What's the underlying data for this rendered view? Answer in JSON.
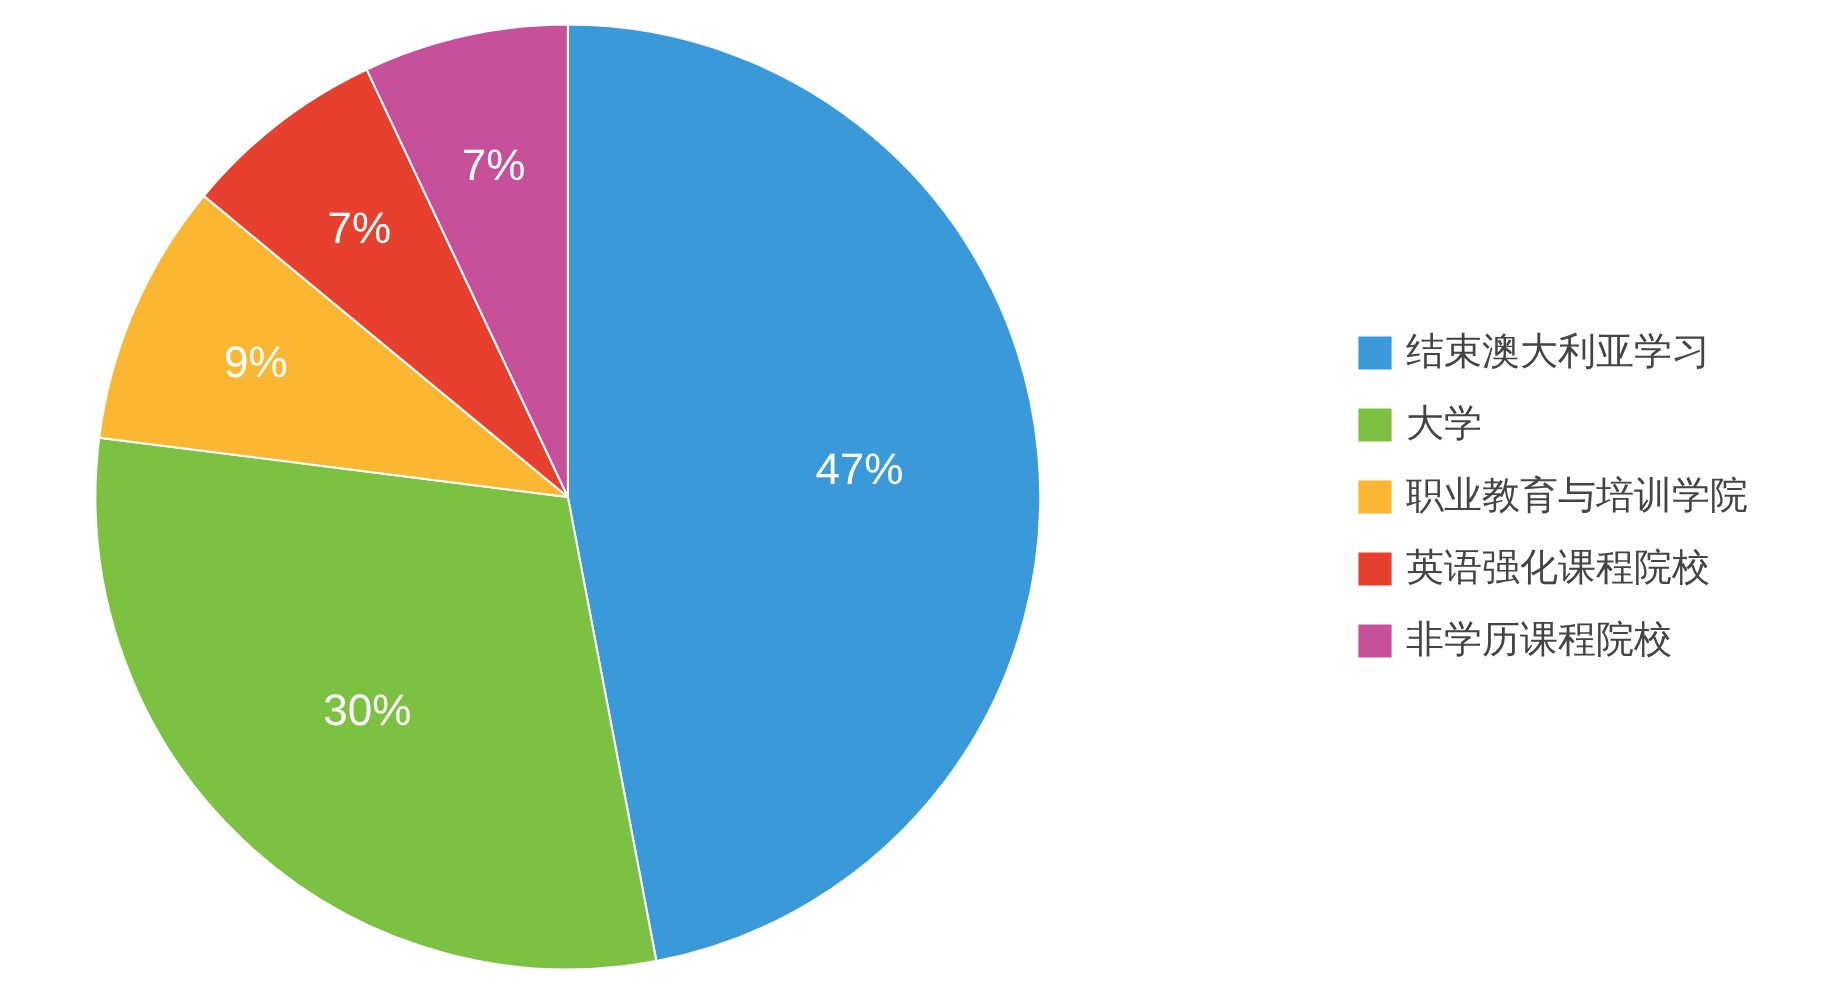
{
  "chart_data": {
    "type": "pie",
    "categories": [
      "结束澳大利亚学习",
      "大学",
      "职业教育与培训学院",
      "英语强化课程院校",
      "非学历课程院校"
    ],
    "values": [
      47,
      30,
      9,
      7,
      7
    ],
    "colors": [
      "#3a9ad9",
      "#7dc143",
      "#fbb731",
      "#e8402e",
      "#c6519a"
    ],
    "value_labels": [
      "47%",
      "30%",
      "9%",
      "7%",
      "7%"
    ],
    "legend": "right"
  }
}
